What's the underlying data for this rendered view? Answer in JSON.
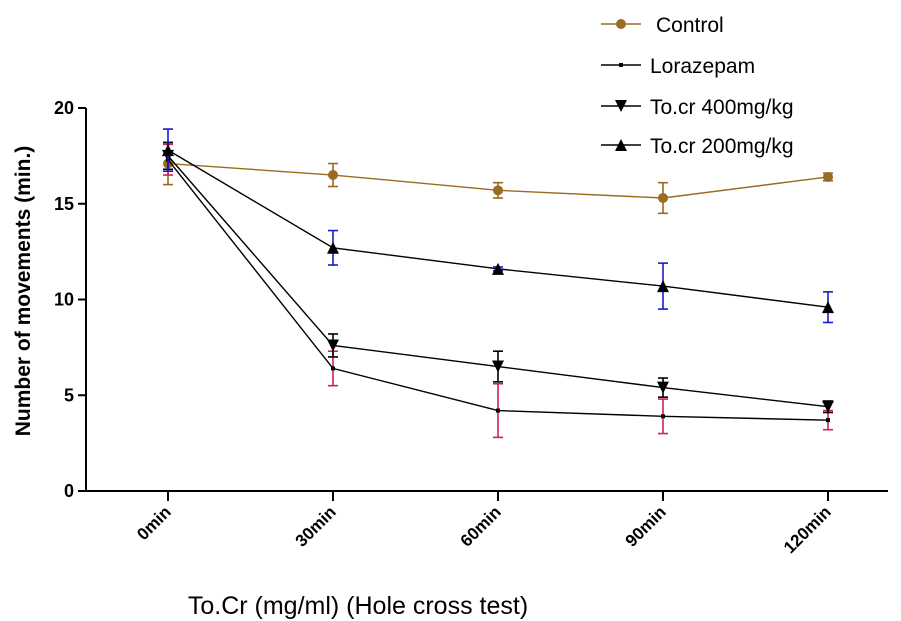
{
  "chart_data": {
    "type": "line",
    "categories": [
      "0min",
      "30min",
      "60min",
      "90min",
      "120min"
    ],
    "xlabel": "To.Cr (mg/ml) (Hole cross test)",
    "ylabel": "Number of movements (min.)",
    "ylim": [
      0,
      20
    ],
    "yticks": [
      "0",
      "5",
      "10",
      "15",
      "20"
    ],
    "grid": false,
    "legend_position": "top-right",
    "series": [
      {
        "name": "Control",
        "marker": "circle",
        "color": "#9a6b22",
        "error_color": "#9a6b22",
        "values": [
          17.1,
          16.5,
          15.7,
          15.3,
          16.4
        ],
        "errors": [
          1.1,
          0.6,
          0.4,
          0.8,
          0.2
        ]
      },
      {
        "name": "Lorazepam",
        "marker": "square",
        "color": "#000000",
        "error_color": "#d02060",
        "values": [
          17.3,
          6.4,
          4.2,
          3.9,
          3.7
        ],
        "errors": [
          0.8,
          0.9,
          1.4,
          0.9,
          0.5
        ]
      },
      {
        "name": "To.cr 400mg/kg",
        "marker": "triangle-down",
        "color": "#000000",
        "error_color": "#000000",
        "values": [
          17.5,
          7.6,
          6.5,
          5.4,
          4.4
        ],
        "errors": [
          0.7,
          0.6,
          0.8,
          0.5,
          0.3
        ]
      },
      {
        "name": "To.cr 200mg/kg",
        "marker": "triangle-up",
        "color": "#000000",
        "error_color": "#1a1ad0",
        "values": [
          17.8,
          12.7,
          11.6,
          10.7,
          9.6
        ],
        "errors": [
          1.1,
          0.9,
          0.1,
          1.2,
          0.8
        ]
      }
    ]
  }
}
